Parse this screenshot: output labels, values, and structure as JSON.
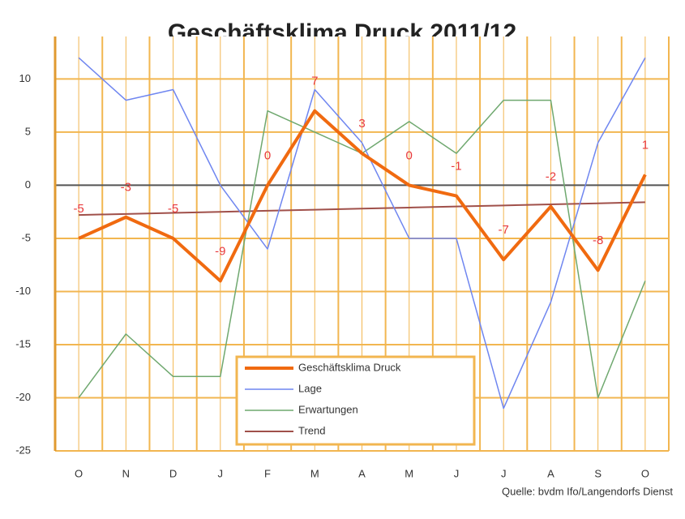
{
  "chart_data": {
    "type": "line",
    "title": "Geschäftsklima Druck 2011/12",
    "source": "Quelle: bvdm Ifo/Langendorfs Dienst",
    "categories": [
      "O",
      "N",
      "D",
      "J",
      "F",
      "M",
      "A",
      "M",
      "J",
      "J",
      "A",
      "S",
      "O"
    ],
    "series": [
      {
        "name": "Geschäftsklima Druck",
        "color": "#f06a10",
        "width": 4,
        "data_labels": true,
        "values": [
          -5,
          -3,
          -5,
          -9,
          0,
          7,
          3,
          0,
          -1,
          -7,
          -2,
          -8,
          1
        ]
      },
      {
        "name": "Lage",
        "color": "#6f86f0",
        "width": 1.5,
        "values": [
          12,
          8,
          9,
          0,
          -6,
          9,
          4,
          -5,
          -5,
          -21,
          -11,
          4,
          12
        ]
      },
      {
        "name": "Erwartungen",
        "color": "#6fa86f",
        "width": 1.5,
        "values": [
          -20,
          -14,
          -18,
          -18,
          7,
          5,
          3,
          6,
          3,
          8,
          8,
          -20,
          -9
        ]
      },
      {
        "name": "Trend",
        "color": "#a0504a",
        "width": 2,
        "values": [
          -2.8,
          -2.7,
          -2.6,
          -2.5,
          -2.4,
          -2.3,
          -2.2,
          -2.1,
          -2.0,
          -1.9,
          -1.8,
          -1.7,
          -1.6
        ]
      }
    ],
    "ylim": [
      -25,
      14
    ],
    "yticks": [
      -25,
      -20,
      -15,
      -10,
      -5,
      0,
      5,
      10
    ],
    "grid": true,
    "legend": "lower center",
    "label_color": "#e8383a"
  }
}
